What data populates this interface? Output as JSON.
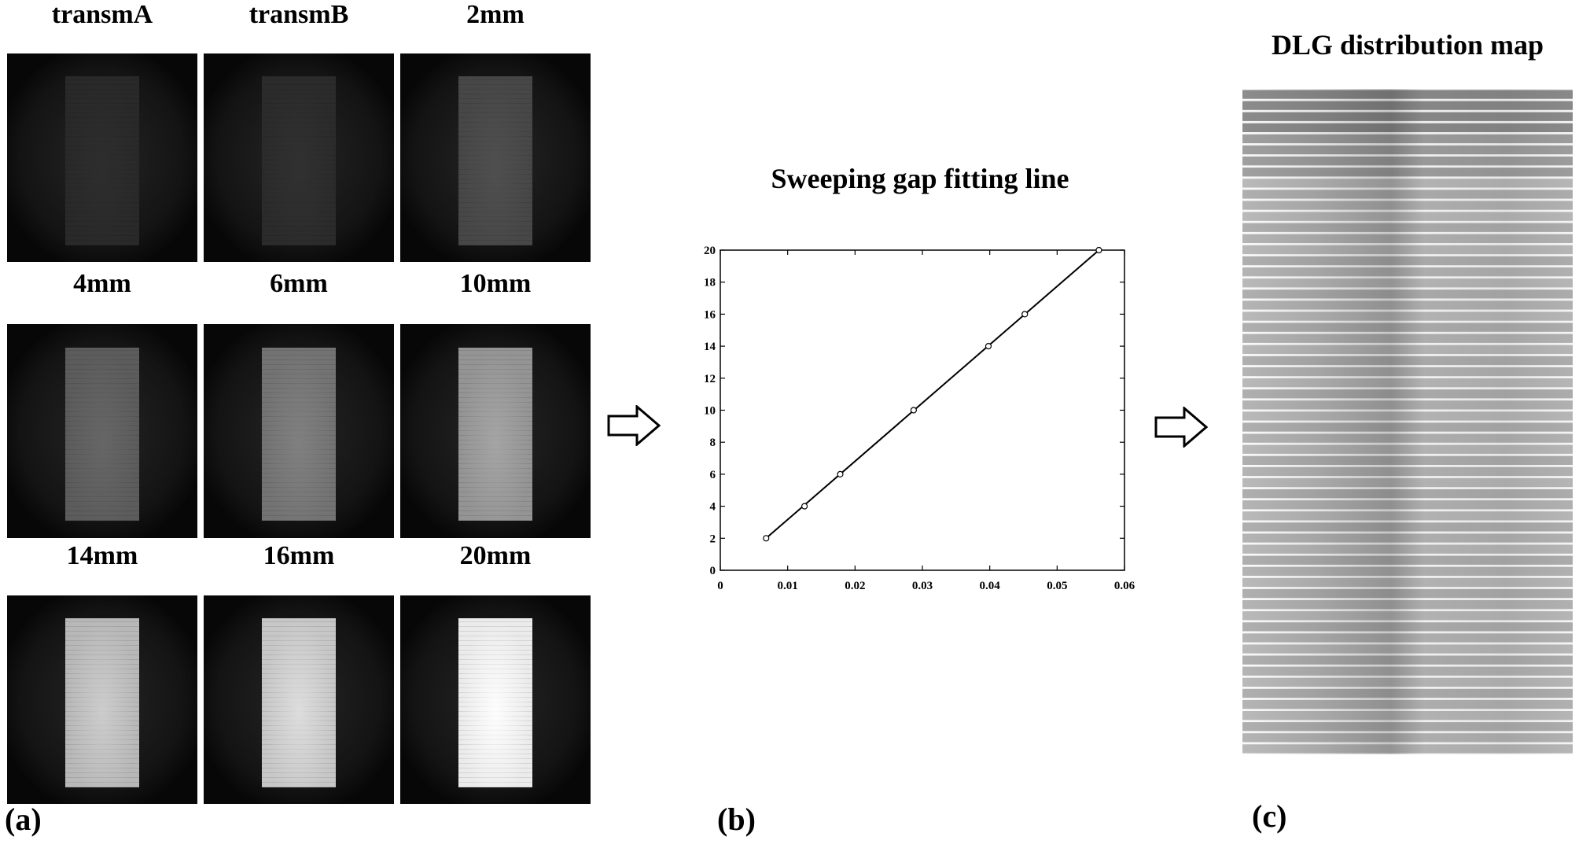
{
  "panel_a": {
    "letter": "(a)",
    "images": [
      {
        "label": "transmA",
        "brightness": 0.16
      },
      {
        "label": "transmB",
        "brightness": 0.17
      },
      {
        "label": "2mm",
        "brightness": 0.28
      },
      {
        "label": "4mm",
        "brightness": 0.36
      },
      {
        "label": "6mm",
        "brightness": 0.45
      },
      {
        "label": "10mm",
        "brightness": 0.58
      },
      {
        "label": "14mm",
        "brightness": 0.72
      },
      {
        "label": "16mm",
        "brightness": 0.78
      },
      {
        "label": "20mm",
        "brightness": 0.92
      }
    ]
  },
  "panel_b": {
    "letter": "(b)",
    "chart_data": {
      "type": "line",
      "title": "Sweeping gap fitting line",
      "xlabel": "",
      "ylabel": "",
      "xlim": [
        0,
        0.06
      ],
      "ylim": [
        0,
        20
      ],
      "x_ticks": [
        "0",
        "0.01",
        "0.02",
        "0.03",
        "0.04",
        "0.05",
        "0.06"
      ],
      "y_ticks": [
        "0",
        "2",
        "4",
        "6",
        "8",
        "10",
        "12",
        "14",
        "16",
        "18",
        "20"
      ],
      "points": [
        {
          "x": 0.0068,
          "y": 2
        },
        {
          "x": 0.0125,
          "y": 4
        },
        {
          "x": 0.0178,
          "y": 6
        },
        {
          "x": 0.0287,
          "y": 10
        },
        {
          "x": 0.0398,
          "y": 14
        },
        {
          "x": 0.0452,
          "y": 16
        },
        {
          "x": 0.0562,
          "y": 20
        }
      ],
      "fit_line": {
        "x": [
          0.0068,
          0.0562
        ],
        "y": [
          2,
          20
        ]
      },
      "grid": false,
      "legend": false
    }
  },
  "panel_c": {
    "letter": "(c)",
    "title": "DLG distribution map"
  }
}
